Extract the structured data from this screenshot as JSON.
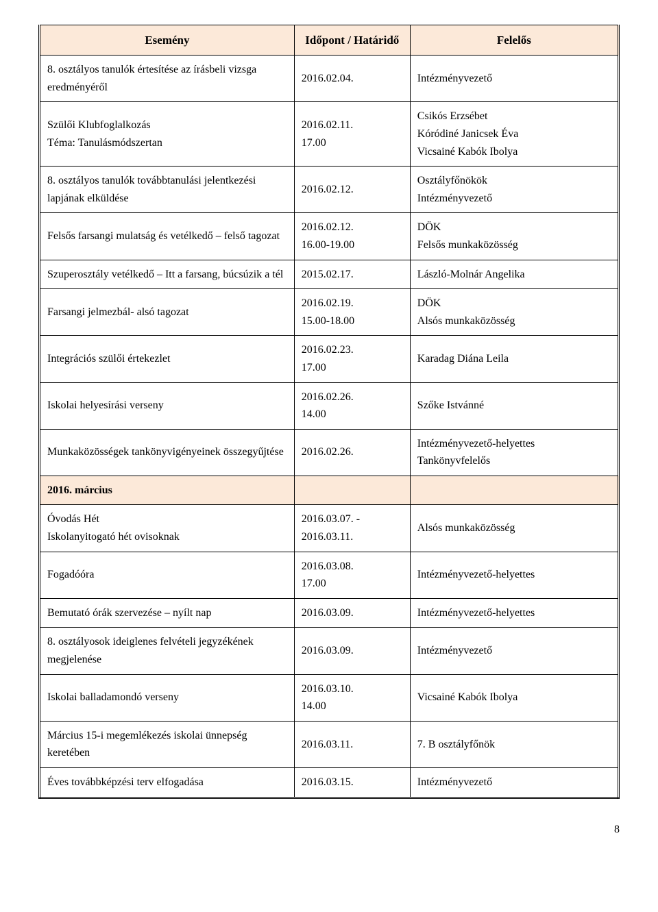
{
  "styling": {
    "header_bg": "#fce9d9",
    "section_bg": "#fce9d9",
    "border_color": "#000000",
    "background": "#ffffff",
    "text_color": "#000000",
    "font_family": "Times New Roman",
    "header_fontsize_pt": 13,
    "body_fontsize_pt": 12,
    "column_widths_pct": [
      44,
      20,
      36
    ]
  },
  "columns": {
    "event": "Esemény",
    "date": "Időpont / Határidő",
    "responsible": "Felelős"
  },
  "rows": [
    {
      "type": "data",
      "event": [
        "8. osztályos tanulók értesítése az írásbeli vizsga eredményéről"
      ],
      "date": [
        "2016.02.04."
      ],
      "responsible": [
        "Intézményvezető"
      ]
    },
    {
      "type": "data",
      "event": [
        "Szülői Klubfoglalkozás",
        "Téma: Tanulásmódszertan"
      ],
      "date": [
        "2016.02.11.",
        "17.00"
      ],
      "responsible": [
        "Csikós Erzsébet",
        "Kóródiné Janicsek Éva",
        "Vicsainé Kabók Ibolya"
      ]
    },
    {
      "type": "data",
      "event": [
        "8. osztályos tanulók továbbtanulási jelentkezési lapjának elküldése"
      ],
      "date": [
        "2016.02.12."
      ],
      "responsible": [
        "Osztályfőnökök",
        "Intézményvezető"
      ]
    },
    {
      "type": "data",
      "event": [
        "Felsős farsangi mulatság és vetélkedő – felső tagozat"
      ],
      "date": [
        "2016.02.12.",
        "16.00-19.00"
      ],
      "responsible": [
        "DÖK",
        "Felsős munkaközösség"
      ]
    },
    {
      "type": "data",
      "event": [
        "Szuperosztály vetélkedő – Itt a farsang, búcsúzik a tél"
      ],
      "date": [
        "2015.02.17."
      ],
      "responsible": [
        "László-Molnár Angelika"
      ]
    },
    {
      "type": "data",
      "event": [
        "Farsangi jelmezbál- alsó tagozat"
      ],
      "date": [
        "2016.02.19.",
        "15.00-18.00"
      ],
      "responsible": [
        "DÖK",
        "Alsós munkaközösség"
      ]
    },
    {
      "type": "data",
      "event": [
        "Integrációs szülői értekezlet"
      ],
      "date": [
        "2016.02.23.",
        "17.00"
      ],
      "responsible": [
        "Karadag Diána Leila"
      ]
    },
    {
      "type": "data",
      "event": [
        "Iskolai helyesírási verseny"
      ],
      "date": [
        "2016.02.26.",
        "14.00"
      ],
      "responsible": [
        "Szőke Istvánné"
      ]
    },
    {
      "type": "data",
      "event": [
        "Munkaközösségek tankönyvigényeinek összegyűjtése"
      ],
      "date": [
        "2016.02.26."
      ],
      "responsible": [
        "Intézményvezető-helyettes",
        "Tankönyvfelelős"
      ]
    },
    {
      "type": "section",
      "label": "2016. március"
    },
    {
      "type": "data",
      "event": [
        "Óvodás Hét",
        "Iskolanyitogató hét ovisoknak"
      ],
      "date": [
        "2016.03.07. -",
        "2016.03.11."
      ],
      "responsible": [
        "Alsós munkaközösség"
      ]
    },
    {
      "type": "data",
      "event": [
        "Fogadóóra"
      ],
      "date": [
        "2016.03.08.",
        "17.00"
      ],
      "responsible": [
        "Intézményvezető-helyettes"
      ]
    },
    {
      "type": "data",
      "event": [
        "Bemutató órák szervezése – nyílt nap"
      ],
      "date": [
        "2016.03.09."
      ],
      "responsible": [
        "Intézményvezető-helyettes"
      ]
    },
    {
      "type": "data",
      "event": [
        "8. osztályosok ideiglenes felvételi jegyzékének megjelenése"
      ],
      "date": [
        "2016.03.09."
      ],
      "responsible": [
        "Intézményvezető"
      ]
    },
    {
      "type": "data",
      "event": [
        "Iskolai balladamondó verseny"
      ],
      "date": [
        "2016.03.10.",
        "14.00"
      ],
      "responsible": [
        "Vicsainé Kabók Ibolya"
      ]
    },
    {
      "type": "data",
      "event": [
        "Március 15-i megemlékezés iskolai ünnepség keretében"
      ],
      "date": [
        "2016.03.11."
      ],
      "responsible": [
        "7. B osztályfőnök"
      ]
    },
    {
      "type": "data",
      "event": [
        "Éves továbbképzési terv elfogadása"
      ],
      "date": [
        "2016.03.15."
      ],
      "responsible": [
        "Intézményvezető"
      ]
    }
  ],
  "page_number": "8"
}
